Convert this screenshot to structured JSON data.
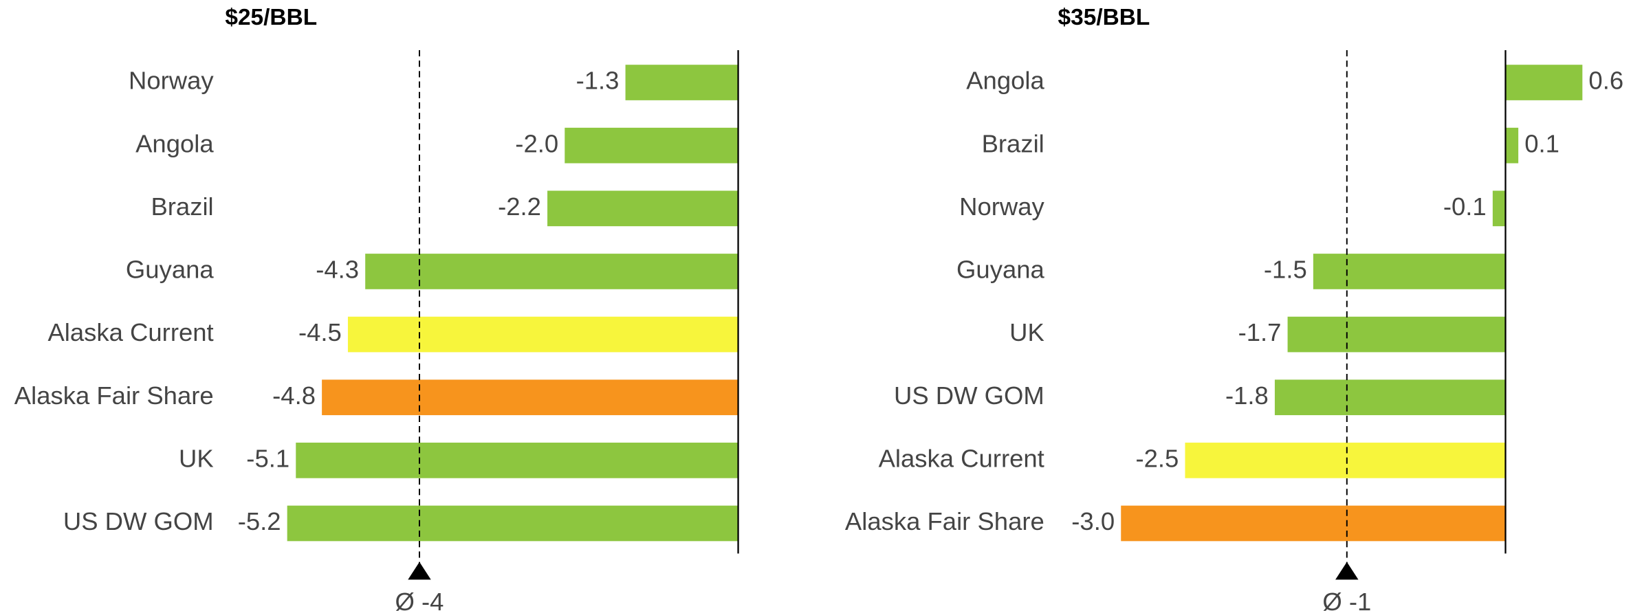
{
  "chart_data": [
    {
      "type": "bar",
      "title": "$25/BBL",
      "categories": [
        "Norway",
        "Angola",
        "Brazil",
        "Guyana",
        "Alaska Current",
        "Alaska Fair Share",
        "UK",
        "US DW GOM"
      ],
      "values": [
        -1.3,
        -2.0,
        -2.2,
        -4.3,
        -4.5,
        -4.8,
        -5.1,
        -5.2
      ],
      "value_labels": [
        "-1.3",
        "-2.0",
        "-2.2",
        "-4.3",
        "-4.5",
        "-4.8",
        "-5.1",
        "-5.2"
      ],
      "colors": [
        "#8dc63f",
        "#8dc63f",
        "#8dc63f",
        "#8dc63f",
        "#f7f53c",
        "#f7941d",
        "#8dc63f",
        "#8dc63f"
      ],
      "xlim": [
        -6,
        0
      ],
      "average": {
        "value": -3.675,
        "label": "Ø -4"
      }
    },
    {
      "type": "bar",
      "title": "$35/BBL",
      "categories": [
        "Angola",
        "Brazil",
        "Norway",
        "Guyana",
        "UK",
        "US DW GOM",
        "Alaska Current",
        "Alaska Fair Share"
      ],
      "values": [
        0.6,
        0.1,
        -0.1,
        -1.5,
        -1.7,
        -1.8,
        -2.5,
        -3.0
      ],
      "value_labels": [
        "0.6",
        "0.1",
        "-0.1",
        "-1.5",
        "-1.7",
        "-1.8",
        "-2.5",
        "-3.0"
      ],
      "colors": [
        "#8dc63f",
        "#8dc63f",
        "#8dc63f",
        "#8dc63f",
        "#8dc63f",
        "#8dc63f",
        "#f7f53c",
        "#f7941d"
      ],
      "xlim": [
        -3.5,
        1
      ],
      "average": {
        "value": -1.2375,
        "label": "Ø -1"
      }
    }
  ]
}
